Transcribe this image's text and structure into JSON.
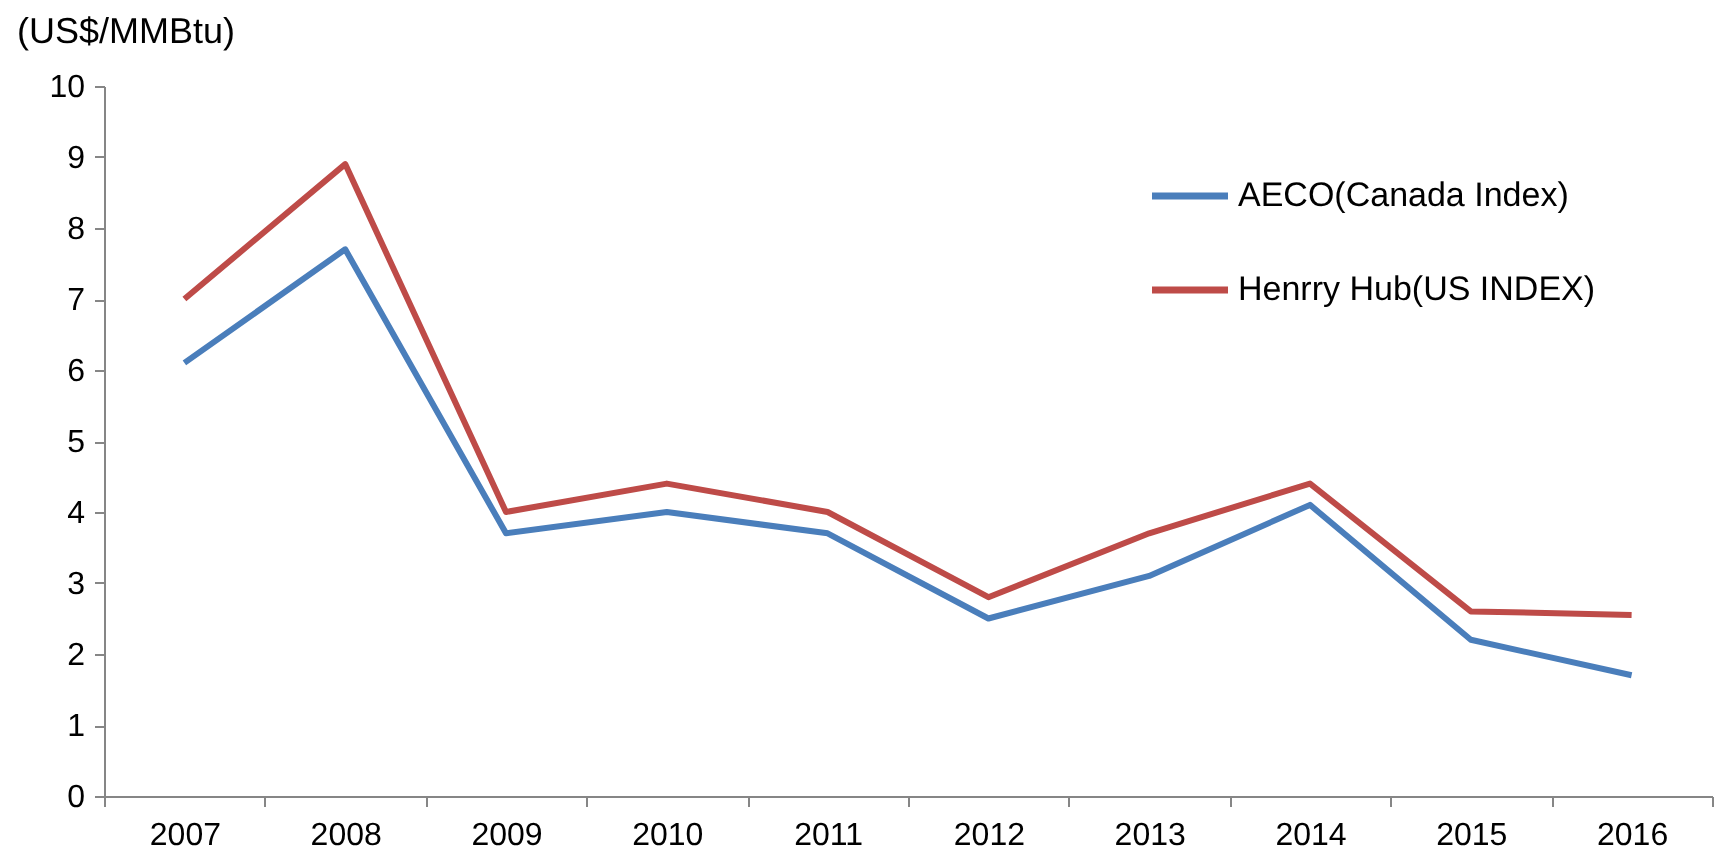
{
  "chart_data": {
    "type": "line",
    "ylabel": "(US$/MMBtu)",
    "categories": [
      "2007",
      "2008",
      "2009",
      "2010",
      "2011",
      "2012",
      "2013",
      "2014",
      "2015",
      "2016"
    ],
    "series": [
      {
        "name": "AECO(Canada Index)",
        "color": "#4a7ebb",
        "values": [
          6.1,
          7.7,
          3.7,
          4.0,
          3.7,
          2.5,
          3.1,
          4.1,
          2.2,
          1.7
        ]
      },
      {
        "name": "Henrry Hub(US INDEX)",
        "color": "#be4b48",
        "values": [
          7.0,
          8.9,
          4.0,
          4.4,
          4.0,
          2.8,
          3.7,
          4.4,
          2.6,
          2.55
        ]
      }
    ],
    "ylim": [
      0,
      10
    ],
    "yticks": [
      0,
      1,
      2,
      3,
      4,
      5,
      6,
      7,
      8,
      9,
      10
    ],
    "grid": false,
    "legend": "top right",
    "marker": "none",
    "line_style": "solid"
  }
}
